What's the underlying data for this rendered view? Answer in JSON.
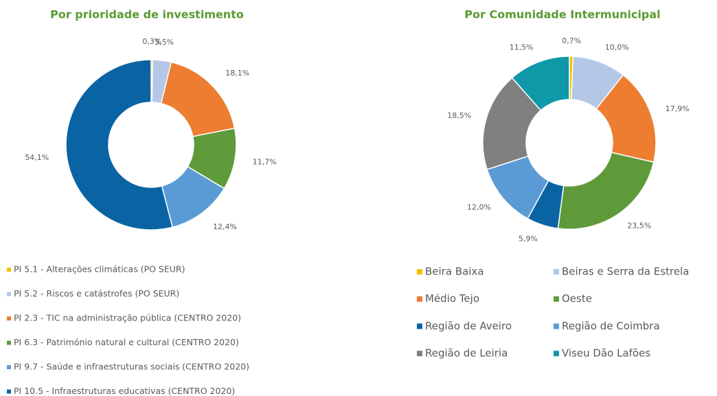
{
  "chart_data": [
    {
      "type": "pie",
      "title": "Por prioridade de investimento",
      "categories": [
        "PI 5.1 - Alterações climáticas (PO SEUR)",
        "PI 5.2 - Riscos e catástrofes (PO SEUR)",
        "PI 2.3 - TIC na administração pública (CENTRO 2020)",
        "PI 6.3 - Património natural e cultural (CENTRO 2020)",
        "PI 9.7 - Saúde e infraestruturas sociais (CENTRO 2020)",
        "PI 10.5 - Infraestruturas educativas (CENTRO 2020)"
      ],
      "values": [
        0.3,
        3.5,
        18.1,
        11.7,
        12.4,
        54.1
      ],
      "value_labels": [
        "0,3%",
        "3,5%",
        "18,1%",
        "11,7%",
        "12,4%",
        "54,1%"
      ],
      "colors": [
        "#f2c200",
        "#b4c7e7",
        "#ed7d31",
        "#5f9a3a",
        "#5b9bd5",
        "#0a64a4"
      ],
      "legend": "bottom"
    },
    {
      "type": "pie",
      "title": "Por Comunidade Intermunicipal",
      "categories": [
        "Beira Baixa",
        "Beiras e Serra da Estrela",
        "Médio Tejo",
        "Oeste",
        "Região de Aveiro",
        "Região de Coimbra",
        "Região de Leiria",
        "Viseu Dão Lafões"
      ],
      "values": [
        0.7,
        10.0,
        17.9,
        23.5,
        5.9,
        12.0,
        18.5,
        11.5
      ],
      "value_labels": [
        "0,7%",
        "10,0%",
        "17,9%",
        "23,5%",
        "5,9%",
        "12,0%",
        "18,5%",
        "11,5%"
      ],
      "colors": [
        "#f2c200",
        "#b4c7e7",
        "#ed7d31",
        "#5f9a3a",
        "#0a64a4",
        "#5b9bd5",
        "#808080",
        "#0e98a8"
      ],
      "legend": "bottom"
    }
  ]
}
